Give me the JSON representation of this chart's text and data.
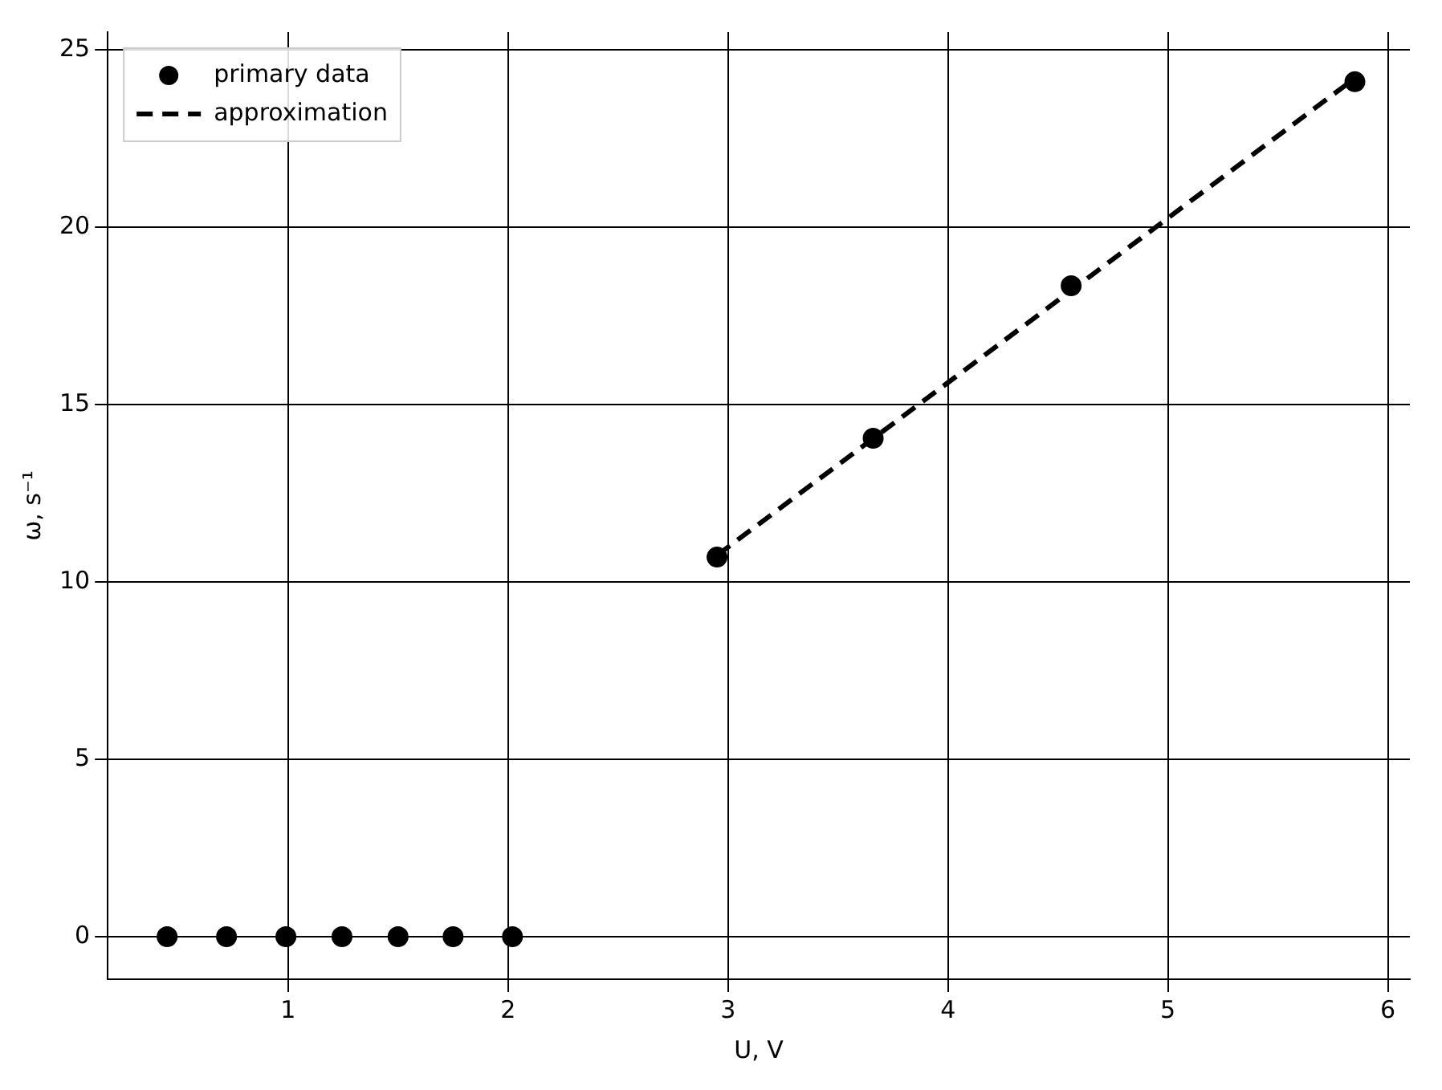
{
  "chart_data": {
    "type": "scatter",
    "xlabel": "U, V",
    "ylabel": "ω, s⁻¹",
    "xlim": [
      0.18,
      6.1
    ],
    "ylim": [
      -1.2,
      25.5
    ],
    "xticks": [
      1,
      2,
      3,
      4,
      5,
      6
    ],
    "yticks": [
      0,
      5,
      10,
      15,
      20,
      25
    ],
    "grid": true,
    "legend": "top left",
    "series": [
      {
        "name": "primary data",
        "marker": "circle",
        "color": "#000000",
        "x": [
          0.45,
          0.72,
          0.99,
          1.245,
          1.5,
          1.75,
          2.02,
          2.95,
          3.66,
          4.56,
          5.85
        ],
        "values": [
          0,
          0,
          0,
          0,
          0,
          0,
          0,
          10.7,
          14.05,
          18.35,
          24.1
        ]
      },
      {
        "name": "approximation",
        "type": "line",
        "marker": "none",
        "line_style": "dashed",
        "color": "#000000",
        "x": [
          2.95,
          5.85
        ],
        "values": [
          10.75,
          24.2
        ]
      }
    ]
  }
}
